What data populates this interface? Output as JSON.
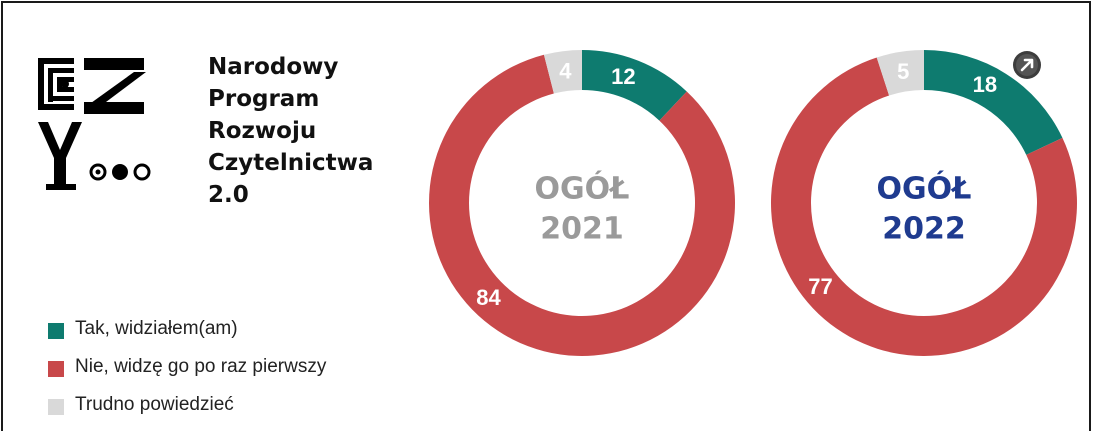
{
  "program": {
    "name_lines": [
      "Narodowy",
      "Program",
      "Rozwoju",
      "Czytelnictwa",
      "2.0"
    ]
  },
  "legend": [
    {
      "label": "Tak, widziałem(am)",
      "color": "#0e7b6f"
    },
    {
      "label": "Nie, widzę go po raz pierwszy",
      "color": "#c8484a"
    },
    {
      "label": "Trudno powiedzieć",
      "color": "#d9d9d9"
    }
  ],
  "chart_data": [
    {
      "type": "pie",
      "variant": "donut",
      "center_label": [
        "OGÓŁ",
        "2021"
      ],
      "center_color": "#9a9a9a",
      "slices": [
        {
          "label": "Tak, widziałem(am)",
          "value": 12
        },
        {
          "label": "Nie, widzę go po raz pierwszy",
          "value": 84
        },
        {
          "label": "Trudno powiedzieć",
          "value": 4
        }
      ]
    },
    {
      "type": "pie",
      "variant": "donut",
      "center_label": [
        "OGÓŁ",
        "2022"
      ],
      "center_color": "#1f3b8f",
      "slices": [
        {
          "label": "Tak, widziałem(am)",
          "value": 18
        },
        {
          "label": "Nie, widzę go po raz pierwszy",
          "value": 77
        },
        {
          "label": "Trudno powiedzieć",
          "value": 5
        }
      ]
    }
  ],
  "badge_icon": "expand-arrow-icon"
}
